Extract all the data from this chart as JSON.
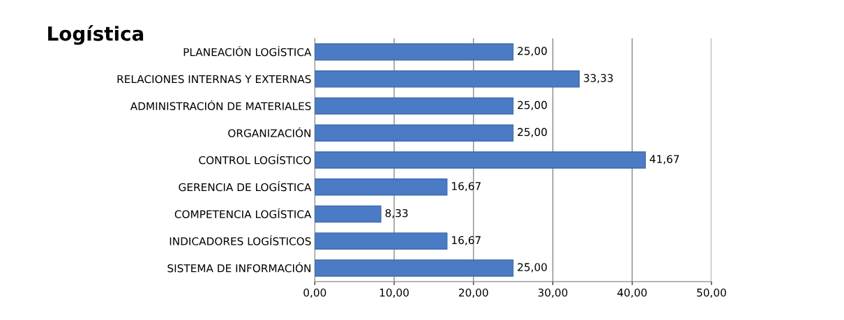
{
  "chart_data": {
    "type": "bar",
    "orientation": "horizontal",
    "title": "Logística",
    "categories": [
      "PLANEACIÓN LOGÍSTICA",
      "RELACIONES INTERNAS Y EXTERNAS",
      "ADMINISTRACIÓN DE MATERIALES",
      "ORGANIZACIÓN",
      "CONTROL LOGÍSTICO",
      "GERENCIA DE LOGÍSTICA",
      "COMPETENCIA LOGÍSTICA",
      "INDICADORES LOGÍSTICOS",
      "SISTEMA DE INFORMACIÓN"
    ],
    "values": [
      25.0,
      33.33,
      25.0,
      25.0,
      41.67,
      16.67,
      8.33,
      16.67,
      25.0
    ],
    "value_labels": [
      "25,00",
      "33,33",
      "25,00",
      "25,00",
      "41,67",
      "16,67",
      "8,33",
      "16,67",
      "25,00"
    ],
    "color": "#4a7bc4",
    "xlim": [
      0,
      50
    ],
    "xticks": [
      {
        "value": 0,
        "label": "0,00"
      },
      {
        "value": 10,
        "label": "10,00"
      },
      {
        "value": 20,
        "label": "20,00"
      },
      {
        "value": 30,
        "label": "30,00"
      },
      {
        "value": 40,
        "label": "40,00"
      },
      {
        "value": 50,
        "label": "50,00"
      }
    ],
    "grid": "x",
    "legend": false
  }
}
